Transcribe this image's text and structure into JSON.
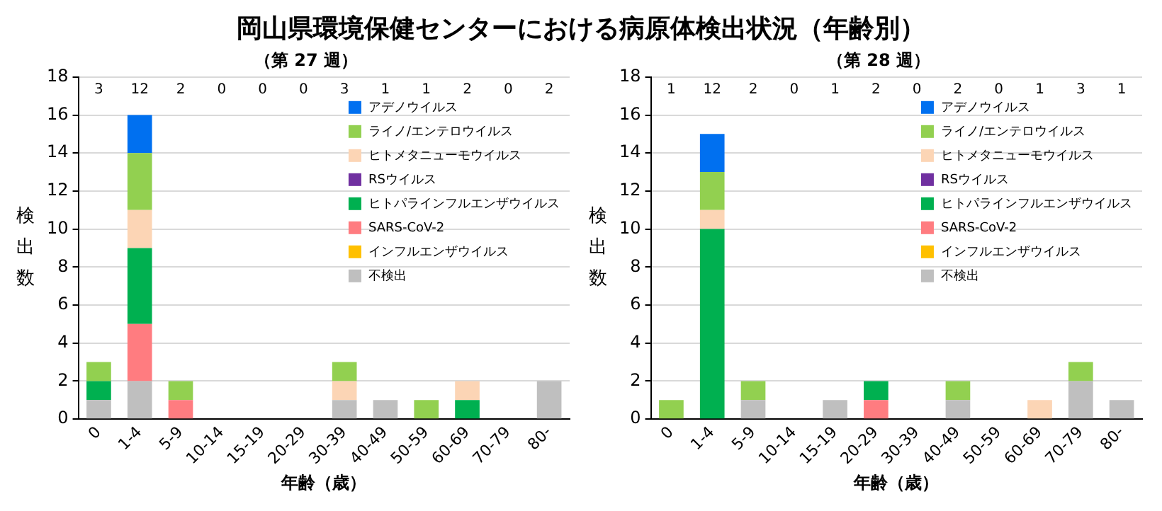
{
  "chart_data": [
    {
      "type": "bar",
      "title": "岡山県環境保健センターにおける病原体検出状況（年齢別）",
      "subtitle": "（第 27 週）",
      "xlabel": "年齢（歳）",
      "ylabel": "検出数",
      "categories": [
        "0",
        "1-4",
        "5-9",
        "10-14",
        "15-19",
        "20-29",
        "30-39",
        "40-49",
        "50-59",
        "60-69",
        "70-79",
        "80-"
      ],
      "stacked": true,
      "ylim": [
        0,
        18
      ],
      "yticks": [
        0,
        2,
        4,
        6,
        8,
        10,
        12,
        14,
        16,
        18
      ],
      "grid": "y",
      "legend": "top right",
      "annotations": [
        "3",
        "12",
        "2",
        "0",
        "0",
        "0",
        "3",
        "1",
        "1",
        "2",
        "0",
        "2"
      ],
      "series": [
        {
          "name": "不検出",
          "color": "#bfbfbf",
          "values": [
            1,
            2,
            0,
            0,
            0,
            0,
            1,
            1,
            0,
            0,
            0,
            2
          ]
        },
        {
          "name": "インフルエンザウイルス",
          "color": "#ffc000",
          "values": [
            0,
            0,
            0,
            0,
            0,
            0,
            0,
            0,
            0,
            0,
            0,
            0
          ]
        },
        {
          "name": "SARS-CoV-2",
          "color": "#ff7c80",
          "values": [
            0,
            3,
            1,
            0,
            0,
            0,
            0,
            0,
            0,
            0,
            0,
            0
          ]
        },
        {
          "name": "ヒトパラインフルエンザウイルス",
          "color": "#00b050",
          "values": [
            1,
            4,
            0,
            0,
            0,
            0,
            0,
            0,
            0,
            1,
            0,
            0
          ]
        },
        {
          "name": "RSウイルス",
          "color": "#7030a0",
          "values": [
            0,
            0,
            0,
            0,
            0,
            0,
            0,
            0,
            0,
            0,
            0,
            0
          ]
        },
        {
          "name": "ヒトメタニューモウイルス",
          "color": "#fcd5b5",
          "values": [
            0,
            2,
            0,
            0,
            0,
            0,
            1,
            0,
            0,
            1,
            0,
            0
          ]
        },
        {
          "name": "ライノ/エンテロウイルス",
          "color": "#92d050",
          "values": [
            1,
            3,
            1,
            0,
            0,
            0,
            1,
            0,
            1,
            0,
            0,
            0
          ]
        },
        {
          "name": "アデノウイルス",
          "color": "#0070f0",
          "values": [
            0,
            2,
            0,
            0,
            0,
            0,
            0,
            0,
            0,
            0,
            0,
            0
          ]
        }
      ]
    },
    {
      "type": "bar",
      "subtitle": "（第 28 週）",
      "xlabel": "年齢（歳）",
      "ylabel": "検出数",
      "categories": [
        "0",
        "1-4",
        "5-9",
        "10-14",
        "15-19",
        "20-29",
        "30-39",
        "40-49",
        "50-59",
        "60-69",
        "70-79",
        "80-"
      ],
      "stacked": true,
      "ylim": [
        0,
        18
      ],
      "yticks": [
        0,
        2,
        4,
        6,
        8,
        10,
        12,
        14,
        16,
        18
      ],
      "grid": "y",
      "legend": "top right",
      "annotations": [
        "1",
        "12",
        "2",
        "0",
        "1",
        "2",
        "0",
        "2",
        "0",
        "1",
        "3",
        "1"
      ],
      "series": [
        {
          "name": "不検出",
          "color": "#bfbfbf",
          "values": [
            0,
            0,
            1,
            0,
            1,
            0,
            0,
            1,
            0,
            0,
            2,
            1
          ]
        },
        {
          "name": "インフルエンザウイルス",
          "color": "#ffc000",
          "values": [
            0,
            0,
            0,
            0,
            0,
            0,
            0,
            0,
            0,
            0,
            0,
            0
          ]
        },
        {
          "name": "SARS-CoV-2",
          "color": "#ff7c80",
          "values": [
            0,
            0,
            0,
            0,
            0,
            1,
            0,
            0,
            0,
            0,
            0,
            0
          ]
        },
        {
          "name": "ヒトパラインフルエンザウイルス",
          "color": "#00b050",
          "values": [
            0,
            10,
            0,
            0,
            0,
            1,
            0,
            0,
            0,
            0,
            0,
            0
          ]
        },
        {
          "name": "RSウイルス",
          "color": "#7030a0",
          "values": [
            0,
            0,
            0,
            0,
            0,
            0,
            0,
            0,
            0,
            0,
            0,
            0
          ]
        },
        {
          "name": "ヒトメタニューモウイルス",
          "color": "#fcd5b5",
          "values": [
            0,
            1,
            0,
            0,
            0,
            0,
            0,
            0,
            0,
            1,
            0,
            0
          ]
        },
        {
          "name": "ライノ/エンテロウイルス",
          "color": "#92d050",
          "values": [
            1,
            2,
            1,
            0,
            0,
            0,
            0,
            1,
            0,
            0,
            1,
            0
          ]
        },
        {
          "name": "アデノウイルス",
          "color": "#0070f0",
          "values": [
            0,
            2,
            0,
            0,
            0,
            0,
            0,
            0,
            0,
            0,
            0,
            0
          ]
        }
      ]
    }
  ]
}
